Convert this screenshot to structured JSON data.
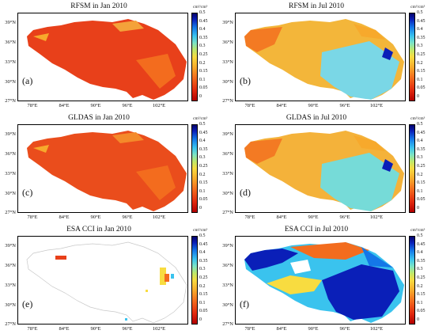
{
  "colorbar": {
    "unit": "cm³/cm³",
    "ticks": [
      "0.5",
      "0.45",
      "0.4",
      "0.35",
      "0.3",
      "0.25",
      "0.2",
      "0.15",
      "0.1",
      "0.05",
      "0"
    ],
    "colors": [
      "#b30000",
      "#e22a0f",
      "#f36c1e",
      "#f7a92c",
      "#f8dc40",
      "#bfe86a",
      "#7be3c6",
      "#3ac3ee",
      "#1477e8",
      "#0a1fb8",
      "#05056b"
    ]
  },
  "axes": {
    "y_ticks": [
      "39°N",
      "36°N",
      "33°N",
      "30°N",
      "27°N"
    ],
    "x_ticks": [
      "78°E",
      "84°E",
      "90°E",
      "96°E",
      "102°E"
    ]
  },
  "panels": [
    {
      "id": "a",
      "label": "(a)",
      "title": "RFSM in Jan 2010",
      "fill": "#e8401a",
      "patch": "#f4a23a",
      "style": "dry"
    },
    {
      "id": "b",
      "label": "(b)",
      "title": "RFSM in Jul 2010",
      "fill": "#f3b63a",
      "patch": "#7ad7e6",
      "style": "wet"
    },
    {
      "id": "c",
      "label": "(c)",
      "title": "GLDAS in Jan 2010",
      "fill": "#ea4d1c",
      "patch": "#f48a2a",
      "style": "dry"
    },
    {
      "id": "d",
      "label": "(d)",
      "title": "GLDAS in Jul 2010",
      "fill": "#f4b23a",
      "patch": "#76dbd8",
      "style": "wet"
    },
    {
      "id": "e",
      "label": "(e)",
      "title": "ESA CCI in Jan 2010",
      "fill": "none",
      "patch": "#f8dc40",
      "style": "sparse"
    },
    {
      "id": "f",
      "label": "(f)",
      "title": "ESA CCI in Jul 2010",
      "fill": "#3ac3ee",
      "patch": "#0a1fb8",
      "style": "blue"
    }
  ]
}
